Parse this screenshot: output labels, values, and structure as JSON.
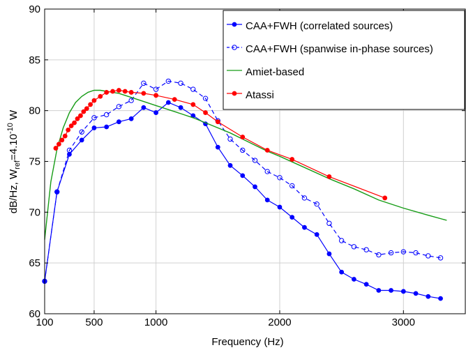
{
  "chart_data": {
    "type": "line",
    "xlabel": "Frequency (Hz)",
    "ylabel": "dB/Hz, W",
    "ylabel_sub": "ref",
    "ylabel_rest": "=4.10",
    "ylabel_exp": "-10",
    "ylabel_unit": " W",
    "xlim": [
      100,
      3500
    ],
    "ylim": [
      60,
      90
    ],
    "xticks": [
      100,
      500,
      1000,
      2000,
      3000
    ],
    "xtick_labels": [
      "100",
      "500",
      "1000",
      "2000",
      "3000"
    ],
    "yticks": [
      60,
      65,
      70,
      75,
      80,
      85,
      90
    ],
    "ytick_labels": [
      "60",
      "65",
      "70",
      "75",
      "80",
      "85",
      "90"
    ],
    "grid": true,
    "legend_position": "top-right",
    "series": [
      {
        "name": "CAA+FWH (correlated sources)",
        "color": "#0000ff",
        "dash": false,
        "marker": "filled-circle",
        "x": [
          100,
          200,
          300,
          400,
          500,
          600,
          700,
          800,
          900,
          1000,
          1100,
          1200,
          1300,
          1400,
          1500,
          1600,
          1700,
          1800,
          1900,
          2000,
          2100,
          2200,
          2300,
          2400,
          2500,
          2600,
          2700,
          2800,
          2900,
          3000,
          3100,
          3200,
          3300
        ],
        "y": [
          63.2,
          72.0,
          75.7,
          77.1,
          78.3,
          78.4,
          78.9,
          79.2,
          80.3,
          79.8,
          80.8,
          80.3,
          79.5,
          78.7,
          76.4,
          74.6,
          73.6,
          72.5,
          71.2,
          70.5,
          69.5,
          68.5,
          67.8,
          65.9,
          64.1,
          63.4,
          62.9,
          62.3,
          62.3,
          62.2,
          62.0,
          61.7,
          61.5
        ]
      },
      {
        "name": "CAA+FWH (spanwise in-phase sources)",
        "color": "#0000ff",
        "dash": true,
        "marker": "open-circle",
        "x": [
          100,
          200,
          300,
          400,
          500,
          600,
          700,
          800,
          900,
          1000,
          1100,
          1200,
          1300,
          1400,
          1500,
          1600,
          1700,
          1800,
          1900,
          2000,
          2100,
          2200,
          2300,
          2400,
          2500,
          2600,
          2700,
          2800,
          2900,
          3000,
          3100,
          3200,
          3300
        ],
        "y": [
          63.2,
          72.0,
          76.1,
          77.9,
          79.3,
          79.6,
          80.4,
          81.0,
          82.7,
          82.1,
          82.9,
          82.7,
          82.1,
          81.2,
          79.0,
          77.2,
          76.1,
          75.1,
          74.0,
          73.4,
          72.6,
          71.4,
          70.8,
          68.9,
          67.2,
          66.6,
          66.3,
          65.8,
          66.0,
          66.1,
          66.0,
          65.7,
          65.5
        ]
      },
      {
        "name": "Amiet-based",
        "color": "#169c16",
        "dash": false,
        "marker": "none",
        "x": [
          100,
          150,
          200,
          250,
          300,
          350,
          400,
          450,
          500,
          550,
          600,
          650,
          700,
          750,
          800,
          900,
          1000,
          1100,
          1200,
          1300,
          1400,
          1500,
          1600,
          1700,
          1800,
          1900,
          2000,
          2200,
          2400,
          2600,
          2800,
          3000,
          3200,
          3350
        ],
        "y": [
          67.3,
          73.0,
          76.2,
          78.3,
          79.8,
          80.8,
          81.4,
          81.8,
          82.0,
          82.0,
          81.9,
          81.8,
          81.7,
          81.5,
          81.3,
          80.9,
          80.5,
          80.1,
          79.7,
          79.3,
          78.8,
          78.3,
          77.8,
          77.2,
          76.6,
          76.0,
          75.5,
          74.4,
          73.3,
          72.3,
          71.2,
          70.4,
          69.7,
          69.2
        ]
      },
      {
        "name": "Atassi",
        "color": "#ff0000",
        "dash": false,
        "marker": "filled-circle",
        "x": [
          190,
          215,
          240,
          265,
          290,
          315,
          340,
          365,
          390,
          415,
          440,
          470,
          500,
          550,
          600,
          650,
          700,
          750,
          800,
          900,
          1000,
          1150,
          1300,
          1400,
          1500,
          1700,
          1900,
          2100,
          2400,
          2850
        ],
        "y": [
          76.3,
          76.7,
          77.1,
          77.5,
          78.1,
          78.5,
          78.8,
          79.2,
          79.5,
          79.9,
          80.2,
          80.6,
          81.0,
          81.4,
          81.8,
          81.9,
          82.0,
          81.9,
          81.8,
          81.7,
          81.5,
          81.1,
          80.6,
          79.8,
          78.9,
          77.4,
          76.1,
          75.2,
          73.5,
          71.4
        ]
      }
    ]
  }
}
